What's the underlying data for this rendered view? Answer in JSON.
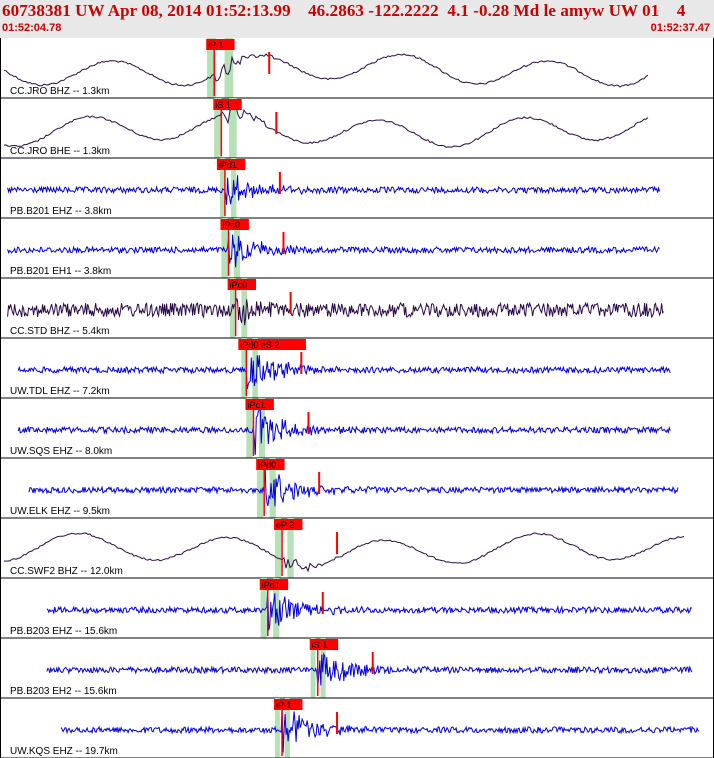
{
  "header": {
    "title": "60738381 UW Apr 08, 2014 01:52:13.99    46.2863 -122.2222  4.1 -0.28 Md le amyw UW 01    4",
    "start_time": "01:52:04.78",
    "end_time": "01:52:37.47"
  },
  "colors": {
    "header_bg": "#e8e8e8",
    "title_red": "#cc0000",
    "trace_blue": "#0000dd",
    "trace_dark": "#2a0a4a",
    "pick_red": "#ff0000",
    "window_green": "#b6e0b6",
    "grid": "#000000"
  },
  "traces": [
    {
      "label": "CC.JRO BHZ -- 1.3km",
      "pick": "iP 1",
      "type": "broadband",
      "color": "#2a0a4a",
      "pick_t": 0.3,
      "green": [
        0.29,
        0.325
      ],
      "amp": 12,
      "end_t": 0.91,
      "start_t": 0.0
    },
    {
      "label": "CC.JRO BHE -- 1.3km",
      "pick": "iS 1",
      "type": "broadband",
      "color": "#2a0a4a",
      "pick_t": 0.31,
      "green": [
        0.3,
        0.33
      ],
      "amp": 12,
      "end_t": 0.91,
      "start_t": 0.0
    },
    {
      "label": "PB.B201 EHZ -- 3.8km",
      "pick": "iPd1",
      "type": "short",
      "color": "#0000dd",
      "pick_t": 0.315,
      "green": [
        0.308,
        0.33
      ],
      "amp": 14,
      "end_t": 0.925,
      "start_t": 0.005
    },
    {
      "label": "PB.B201 EH1 -- 3.8km",
      "pick": "iPc0",
      "type": "short",
      "color": "#0000dd",
      "pick_t": 0.32,
      "green": [
        0.31,
        0.335
      ],
      "amp": 14,
      "end_t": 0.925,
      "start_t": 0.005
    },
    {
      "label": "CC.STD BHZ -- 5.4km",
      "pick": "iPc0",
      "type": "noisy",
      "color": "#2a0a4a",
      "pick_t": 0.33,
      "green": [
        0.322,
        0.345
      ],
      "amp": 12,
      "end_t": 0.93,
      "start_t": 0.005
    },
    {
      "label": "UW.TDL EHZ -- 7.2km",
      "pick": "iPd0   eS 2",
      "type": "short",
      "color": "#0000dd",
      "pick_t": 0.345,
      "green": [
        0.338,
        0.36
      ],
      "amp": 16,
      "end_t": 0.94,
      "start_t": 0.02
    },
    {
      "label": "UW.SQS EHZ -- 8.0km",
      "pick": "iPc1",
      "type": "short",
      "color": "#0000dd",
      "pick_t": 0.355,
      "green": [
        0.345,
        0.37
      ],
      "amp": 18,
      "end_t": 0.94,
      "start_t": 0.02
    },
    {
      "label": "UW.ELK EHZ -- 9.5km",
      "pick": "iPd0",
      "type": "short",
      "color": "#0000dd",
      "pick_t": 0.37,
      "green": [
        0.36,
        0.385
      ],
      "amp": 18,
      "end_t": 0.95,
      "start_t": 0.035
    },
    {
      "label": "CC.SWF2 BHZ -- 12.0km",
      "pick": "eP 2",
      "type": "broadband",
      "color": "#2a0a4a",
      "pick_t": 0.395,
      "green": [
        0.385,
        0.41
      ],
      "amp": 12,
      "end_t": 0.96,
      "start_t": 0.0
    },
    {
      "label": "PB.B203 EHZ -- 15.6km",
      "pick": "iPd1",
      "type": "short",
      "color": "#0000dd",
      "pick_t": 0.375,
      "green": [
        0.365,
        0.39
      ],
      "amp": 16,
      "end_t": 0.97,
      "start_t": 0.06
    },
    {
      "label": "PB.B203 EH2 -- 15.6km",
      "pick": "iS 1",
      "type": "short",
      "color": "#0000dd",
      "pick_t": 0.445,
      "green": [
        0.435,
        0.455
      ],
      "amp": 16,
      "end_t": 0.97,
      "start_t": 0.06
    },
    {
      "label": "UW.KQS EHZ -- 19.7km",
      "pick": "iP 1",
      "type": "short",
      "color": "#0000dd",
      "pick_t": 0.395,
      "green": [
        0.385,
        0.405
      ],
      "amp": 18,
      "end_t": 0.98,
      "start_t": 0.08
    }
  ]
}
